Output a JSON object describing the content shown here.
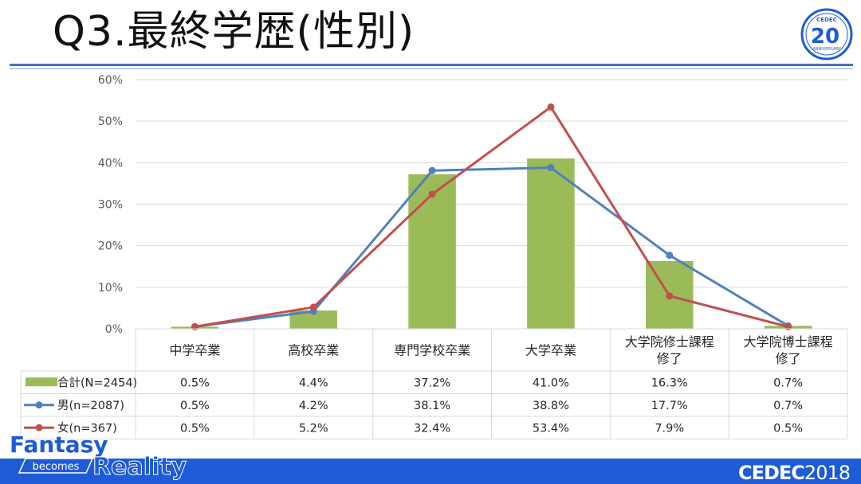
{
  "slide": {
    "title": "Q3.最終学歴(性別)"
  },
  "logo": {
    "badge_text": "CEDEC",
    "number": "20",
    "sub": "ANNIVERSARY",
    "footer_brand": "CEDEC",
    "footer_year": "2018",
    "tagline_1": "Fantasy",
    "tagline_2": "becomes",
    "tagline_3": "Reality"
  },
  "colors": {
    "bar": "#9bbb59",
    "male": "#4f81bd",
    "female": "#c0504d",
    "grid": "#d9d9d9",
    "footer": "#1e5bd6"
  },
  "chart_data": {
    "type": "bar",
    "y_ticks": [
      "0%",
      "10%",
      "20%",
      "30%",
      "40%",
      "50%",
      "60%"
    ],
    "ylim": [
      0,
      60
    ],
    "categories": [
      [
        "中学卒業"
      ],
      [
        "高校卒業"
      ],
      [
        "専門学校卒業"
      ],
      [
        "大学卒業"
      ],
      [
        "大学院修士課程",
        "修了"
      ],
      [
        "大学院博士課程",
        "修了"
      ]
    ],
    "series": [
      {
        "name": "合計(N=2454)",
        "type": "bar",
        "color": "#9bbb59",
        "values": [
          0.5,
          4.4,
          37.2,
          41.0,
          16.3,
          0.7
        ],
        "labels": [
          "0.5%",
          "4.4%",
          "37.2%",
          "41.0%",
          "16.3%",
          "0.7%"
        ]
      },
      {
        "name": "男(n=2087)",
        "type": "line",
        "color": "#4f81bd",
        "values": [
          0.5,
          4.2,
          38.1,
          38.8,
          17.7,
          0.7
        ],
        "labels": [
          "0.5%",
          "4.2%",
          "38.1%",
          "38.8%",
          "17.7%",
          "0.7%"
        ]
      },
      {
        "name": "女(n=367)",
        "type": "line",
        "color": "#c0504d",
        "values": [
          0.5,
          5.2,
          32.4,
          53.4,
          7.9,
          0.5
        ],
        "labels": [
          "0.5%",
          "5.2%",
          "32.4%",
          "53.4%",
          "7.9%",
          "0.5%"
        ]
      }
    ],
    "grid": true,
    "data_table": true
  }
}
